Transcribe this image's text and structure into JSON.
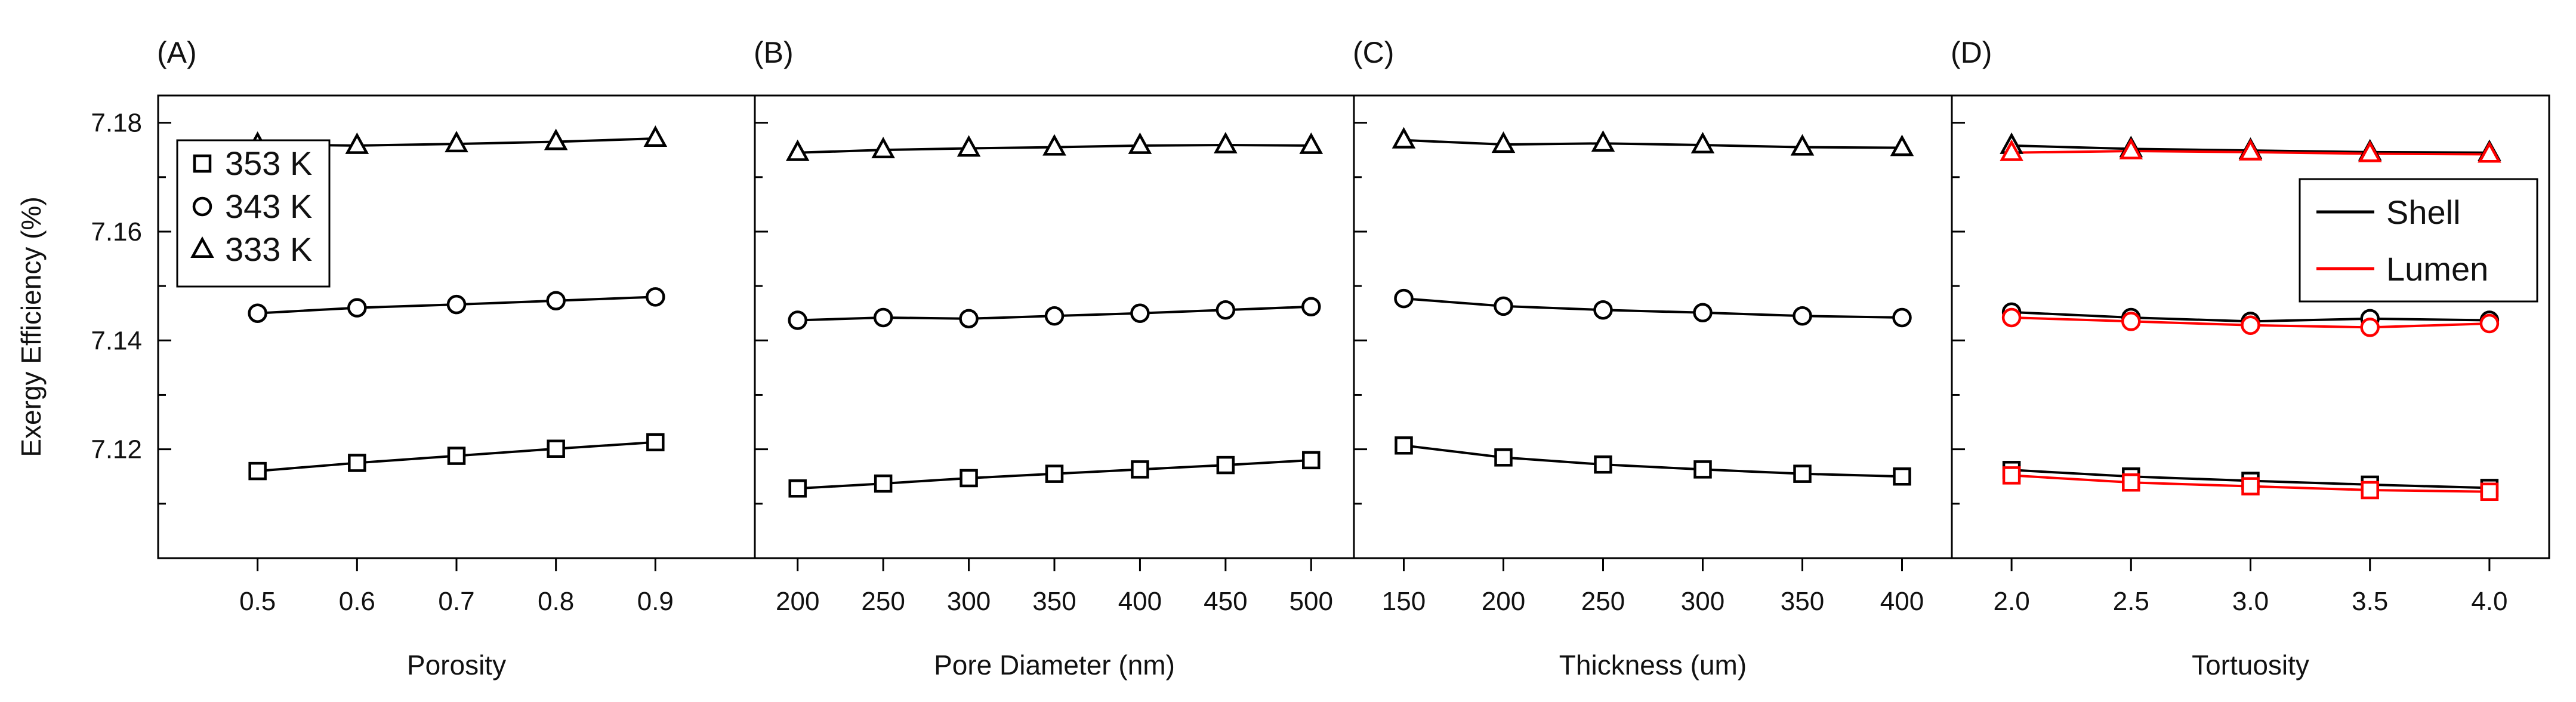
{
  "chart_data": [
    {
      "type": "line",
      "panel_label": "(A)",
      "xlabel": "Porosity",
      "ylabel": "Exergy Efficiency (%)",
      "x": [
        0.5,
        0.6,
        0.7,
        0.8,
        0.9
      ],
      "xticks": [
        "0.5",
        "0.6",
        "0.7",
        "0.8",
        "0.9"
      ],
      "xlim": [
        0.4,
        1.0
      ],
      "ylim": [
        7.1,
        7.185
      ],
      "yticks": [
        "7.12",
        "7.14",
        "7.16",
        "7.18"
      ],
      "series": [
        {
          "name": "353 K",
          "marker": "square",
          "color": "#000000",
          "values": [
            7.116,
            7.1175,
            7.1188,
            7.1201,
            7.1213
          ]
        },
        {
          "name": "343 K",
          "marker": "circle",
          "color": "#000000",
          "values": [
            7.145,
            7.146,
            7.1466,
            7.1473,
            7.148
          ]
        },
        {
          "name": "333 K",
          "marker": "triangle",
          "color": "#000000",
          "values": [
            7.176,
            7.1758,
            7.1761,
            7.1765,
            7.1771
          ]
        }
      ],
      "legend": {
        "position": "top-left",
        "entries": [
          {
            "label": "353 K",
            "marker": "square"
          },
          {
            "label": "343 K",
            "marker": "circle"
          },
          {
            "label": "333 K",
            "marker": "triangle"
          }
        ]
      }
    },
    {
      "type": "line",
      "panel_label": "(B)",
      "xlabel": "Pore Diameter (nm)",
      "x": [
        200,
        250,
        300,
        350,
        400,
        450,
        500
      ],
      "xticks": [
        "200",
        "250",
        "300",
        "350",
        "400",
        "450",
        "500"
      ],
      "xlim": [
        175,
        525
      ],
      "ylim": [
        7.1,
        7.185
      ],
      "series": [
        {
          "name": "353 K",
          "marker": "square",
          "color": "#000000",
          "values": [
            7.1128,
            7.1137,
            7.1147,
            7.1155,
            7.1163,
            7.1171,
            7.118
          ]
        },
        {
          "name": "343 K",
          "marker": "circle",
          "color": "#000000",
          "values": [
            7.1437,
            7.1442,
            7.144,
            7.1445,
            7.145,
            7.1456,
            7.1462
          ]
        },
        {
          "name": "333 K",
          "marker": "triangle",
          "color": "#000000",
          "values": [
            7.1745,
            7.175,
            7.1753,
            7.1755,
            7.1758,
            7.1759,
            7.1758
          ]
        }
      ]
    },
    {
      "type": "line",
      "panel_label": "(C)",
      "xlabel": "Thickness (um)",
      "x": [
        150,
        200,
        250,
        300,
        350,
        400
      ],
      "xticks": [
        "150",
        "200",
        "250",
        "300",
        "350",
        "400"
      ],
      "xlim": [
        125,
        425
      ],
      "ylim": [
        7.1,
        7.185
      ],
      "series": [
        {
          "name": "353 K",
          "marker": "square",
          "color": "#000000",
          "values": [
            7.1207,
            7.1185,
            7.1172,
            7.1163,
            7.1155,
            7.115
          ]
        },
        {
          "name": "343 K",
          "marker": "circle",
          "color": "#000000",
          "values": [
            7.1477,
            7.1463,
            7.1456,
            7.1451,
            7.1445,
            7.1442
          ]
        },
        {
          "name": "333 K",
          "marker": "triangle",
          "color": "#000000",
          "values": [
            7.1768,
            7.176,
            7.1762,
            7.1759,
            7.1755,
            7.1754
          ]
        }
      ]
    },
    {
      "type": "line",
      "panel_label": "(D)",
      "xlabel": "Tortuosity",
      "x": [
        2.0,
        2.5,
        3.0,
        3.5,
        4.0
      ],
      "xticks": [
        "2.0",
        "2.5",
        "3.0",
        "3.5",
        "4.0"
      ],
      "xlim": [
        1.75,
        4.25
      ],
      "ylim": [
        7.1,
        7.185
      ],
      "series": [
        {
          "name": "Shell 353 K",
          "marker": "square",
          "color": "#000000",
          "values": [
            7.1162,
            7.115,
            7.1142,
            7.1135,
            7.1129
          ]
        },
        {
          "name": "Lumen 353 K",
          "marker": "square",
          "color": "#ff0000",
          "values": [
            7.1152,
            7.1139,
            7.1132,
            7.1125,
            7.1122
          ]
        },
        {
          "name": "Shell 343 K",
          "marker": "circle",
          "color": "#000000",
          "values": [
            7.1452,
            7.1442,
            7.1435,
            7.144,
            7.1437
          ]
        },
        {
          "name": "Lumen 343 K",
          "marker": "circle",
          "color": "#ff0000",
          "values": [
            7.1442,
            7.1435,
            7.1428,
            7.1424,
            7.1431
          ]
        },
        {
          "name": "Shell 333 K",
          "marker": "triangle",
          "color": "#000000",
          "values": [
            7.1758,
            7.1752,
            7.1749,
            7.1746,
            7.1745
          ]
        },
        {
          "name": "Lumen 333 K",
          "marker": "triangle",
          "color": "#ff0000",
          "values": [
            7.1745,
            7.1748,
            7.1746,
            7.1743,
            7.1742
          ]
        }
      ],
      "legend": {
        "position": "top-right",
        "entries": [
          {
            "label": "Shell",
            "color": "#000000"
          },
          {
            "label": "Lumen",
            "color": "#ff0000"
          }
        ]
      }
    }
  ]
}
